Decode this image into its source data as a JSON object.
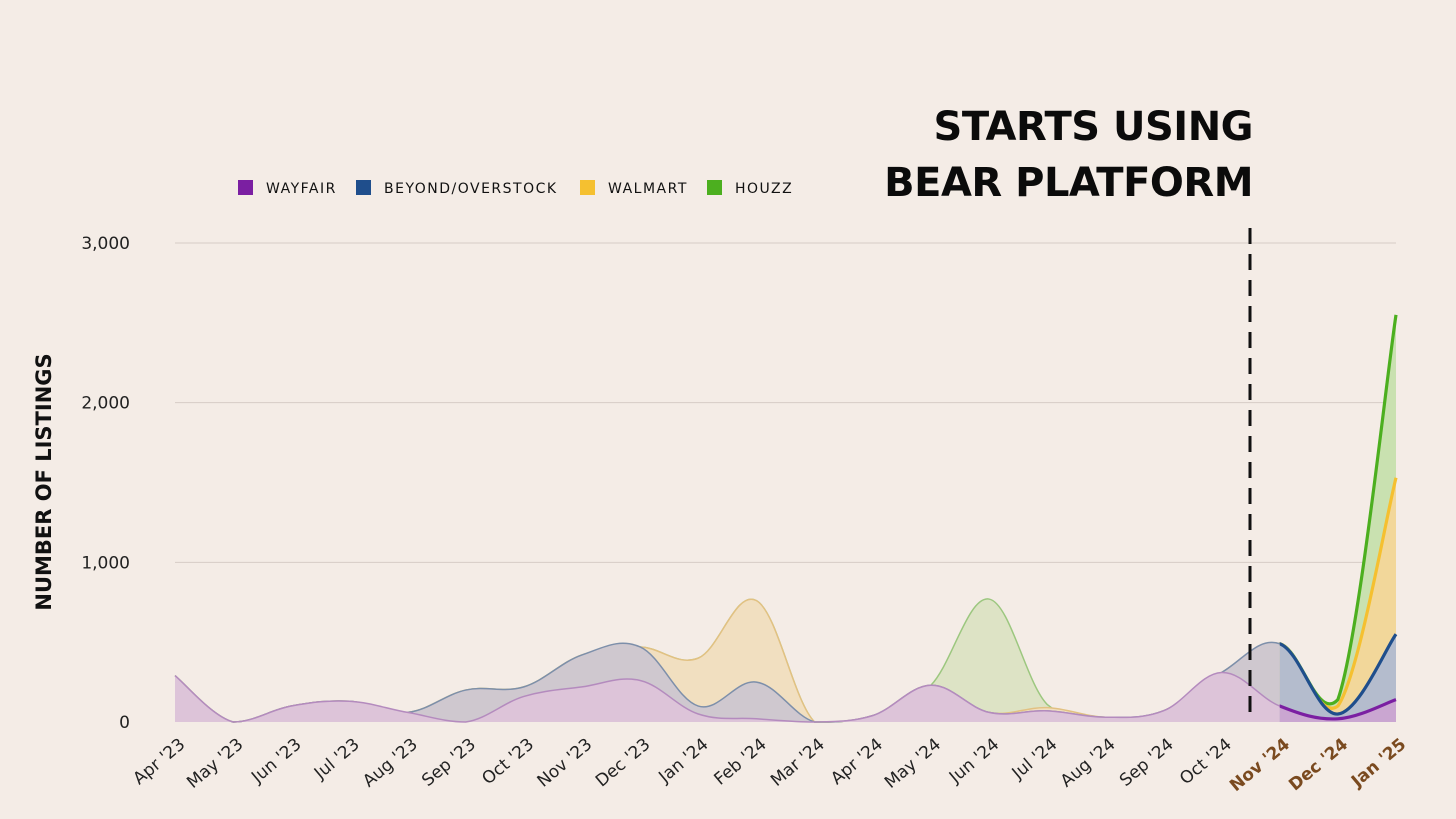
{
  "chart_data": {
    "type": "area",
    "ylabel": "NUMBER OF LISTINGS",
    "ylim": [
      0,
      3000
    ],
    "yticks": [
      0,
      1000,
      2000,
      3000
    ],
    "ytick_labels": [
      "0",
      "1,000",
      "2,000",
      "3,000"
    ],
    "categories": [
      "Apr '23",
      "May '23",
      "Jun '23",
      "Jul '23",
      "Aug '23",
      "Sep '23",
      "Oct '23",
      "Nov '23",
      "Dec '23",
      "Jan '24",
      "Feb '24",
      "Mar '24",
      "Apr '24",
      "May '24",
      "Jun '24",
      "Jul '24",
      "Aug '24",
      "Sep '24",
      "Oct '24",
      "Nov '24",
      "Dec '24",
      "Jan '25"
    ],
    "highlight_categories": [
      "Nov '24",
      "Dec '24",
      "Jan '25"
    ],
    "stacked": true,
    "grid": true,
    "legend_position": "top-left",
    "annotation": {
      "line1": "STARTS USING",
      "line2": "BEAR PLATFORM",
      "at_category": "Nov '24"
    },
    "series": [
      {
        "name": "WAYFAIR",
        "color": "#7b1fa2",
        "values": [
          290,
          0,
          100,
          130,
          60,
          0,
          160,
          220,
          260,
          50,
          20,
          0,
          40,
          230,
          60,
          70,
          30,
          70,
          310,
          100,
          20,
          140
        ]
      },
      {
        "name": "BEYOND/OVERSTOCK",
        "color": "#1f4e8c",
        "values": [
          0,
          0,
          0,
          0,
          0,
          200,
          60,
          200,
          210,
          50,
          230,
          0,
          0,
          0,
          0,
          0,
          0,
          0,
          0,
          390,
          30,
          410
        ]
      },
      {
        "name": "WALMART",
        "color": "#f5c030",
        "values": [
          0,
          0,
          0,
          0,
          0,
          0,
          0,
          0,
          0,
          300,
          510,
          0,
          0,
          0,
          0,
          20,
          0,
          0,
          0,
          0,
          50,
          980
        ]
      },
      {
        "name": "HOUZZ",
        "color": "#4caf1f",
        "values": [
          0,
          0,
          0,
          0,
          0,
          0,
          0,
          0,
          0,
          0,
          0,
          0,
          0,
          0,
          710,
          20,
          0,
          0,
          0,
          0,
          40,
          1020
        ]
      }
    ]
  }
}
